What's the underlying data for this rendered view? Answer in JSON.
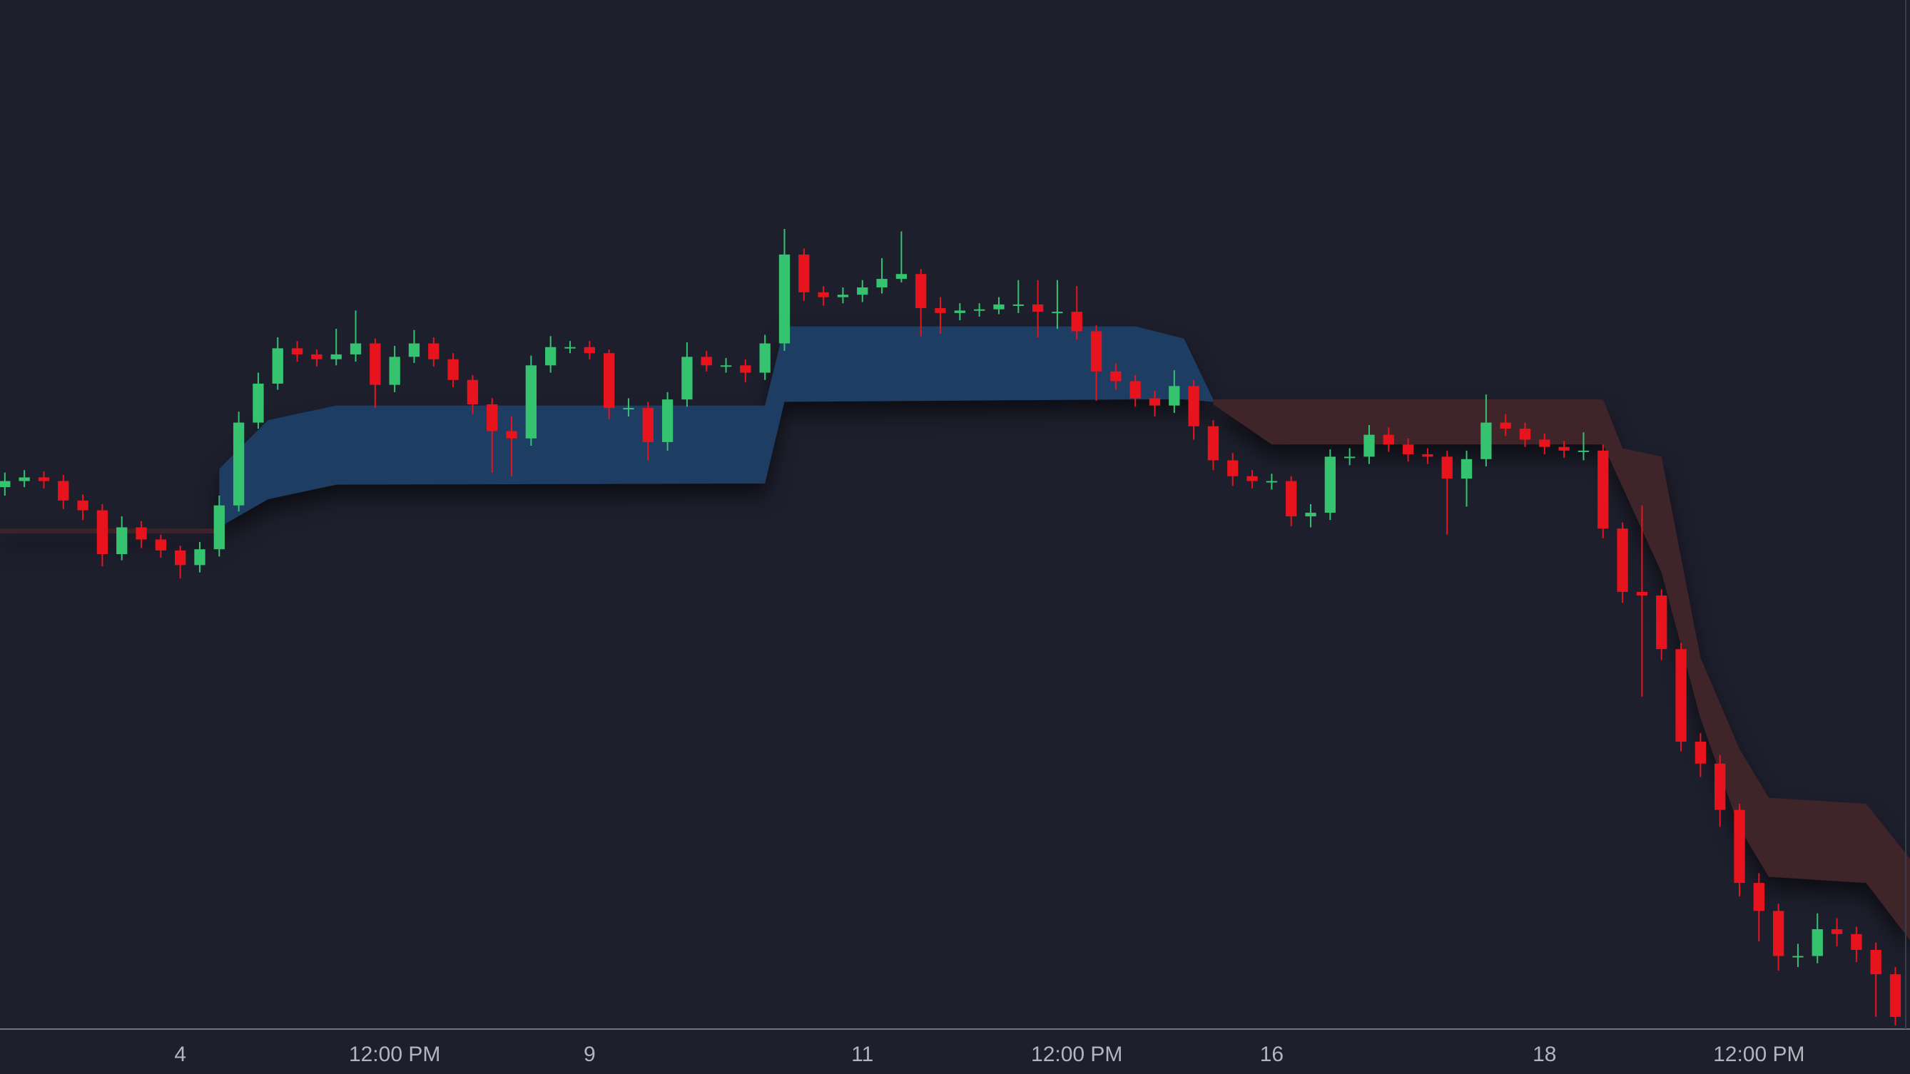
{
  "chart_data": {
    "type": "candlestick",
    "up_color": "#35c370",
    "down_color": "#e8141d",
    "xlim": [
      -0.25,
      97.75
    ],
    "ylim": [
      5.5,
      90
    ],
    "xticks": [
      {
        "value": 9,
        "label": "4"
      },
      {
        "value": 20,
        "label": "12:00 PM"
      },
      {
        "value": 30,
        "label": "9"
      },
      {
        "value": 44,
        "label": "11"
      },
      {
        "value": 55,
        "label": "12:00 PM"
      },
      {
        "value": 65,
        "label": "16"
      },
      {
        "value": 79,
        "label": "18"
      },
      {
        "value": 90,
        "label": "12:00 PM"
      }
    ],
    "open": [
      50.0,
      50.5,
      50.8,
      50.5,
      48.9,
      48.1,
      44.5,
      46.7,
      45.7,
      44.8,
      43.6,
      44.9,
      48.5,
      55.3,
      58.5,
      61.4,
      60.9,
      60.5,
      60.9,
      61.8,
      58.4,
      60.7,
      61.8,
      60.5,
      58.8,
      56.8,
      54.6,
      54.0,
      60.0,
      61.5,
      61.5,
      61.0,
      56.5,
      56.5,
      53.7,
      57.2,
      60.7,
      60.0,
      60.0,
      59.4,
      61.8,
      69.1,
      66.0,
      65.6,
      65.8,
      66.4,
      67.1,
      67.5,
      64.7,
      64.3,
      64.5,
      64.6,
      65.0,
      65.0,
      64.4,
      64.4,
      62.8,
      59.5,
      58.7,
      57.3,
      56.7,
      58.3,
      55.0,
      52.2,
      50.9,
      50.5,
      50.5,
      47.6,
      47.9,
      52.5,
      52.5,
      54.3,
      53.5,
      52.7,
      52.5,
      50.7,
      52.3,
      55.3,
      54.8,
      53.9,
      53.3,
      53.0,
      53.0,
      46.6,
      41.4,
      41.1,
      36.7,
      29.1,
      27.3,
      23.5,
      17.5,
      15.2,
      11.5,
      11.5,
      13.7,
      13.3,
      12.0,
      10.0
    ],
    "high": [
      51.2,
      51.4,
      51.3,
      51.0,
      49.4,
      48.6,
      47.6,
      47.2,
      46.1,
      45.2,
      45.5,
      49.3,
      56.2,
      59.4,
      62.3,
      62.0,
      61.3,
      63.0,
      64.5,
      62.2,
      61.6,
      62.9,
      62.3,
      61.0,
      59.2,
      57.3,
      55.8,
      60.8,
      62.4,
      62.0,
      62.0,
      61.3,
      57.3,
      57.0,
      57.8,
      61.9,
      61.2,
      60.6,
      60.5,
      62.5,
      71.2,
      69.6,
      66.5,
      66.4,
      67.0,
      68.8,
      71.0,
      67.9,
      65.6,
      65.1,
      65.1,
      65.6,
      67.0,
      67.0,
      67.0,
      66.5,
      63.3,
      60.2,
      59.2,
      57.9,
      59.6,
      58.8,
      55.5,
      52.8,
      51.4,
      51.1,
      50.9,
      48.6,
      53.1,
      53.2,
      55.1,
      54.9,
      54.0,
      53.2,
      53.0,
      53.0,
      57.6,
      56.0,
      55.3,
      54.4,
      53.8,
      54.5,
      53.5,
      47.1,
      48.5,
      41.6,
      37.2,
      29.8,
      28.0,
      24.0,
      18.3,
      15.8,
      12.5,
      15.0,
      14.6,
      13.9,
      12.6,
      10.6
    ],
    "low": [
      49.3,
      50.0,
      49.9,
      48.2,
      47.3,
      43.5,
      44.0,
      45.0,
      44.2,
      42.5,
      43.0,
      44.3,
      48.0,
      54.8,
      58.0,
      60.3,
      59.9,
      60.0,
      60.3,
      56.5,
      57.8,
      60.2,
      59.9,
      58.2,
      56.0,
      51.2,
      50.9,
      53.4,
      59.4,
      61.0,
      60.5,
      55.6,
      55.8,
      52.2,
      53.0,
      56.6,
      59.5,
      59.4,
      58.6,
      58.8,
      61.2,
      65.3,
      64.9,
      65.1,
      65.2,
      65.9,
      66.8,
      62.4,
      62.6,
      63.7,
      64.0,
      64.2,
      64.3,
      62.3,
      63.0,
      62.1,
      57.1,
      58.0,
      56.6,
      55.8,
      56.1,
      53.9,
      51.4,
      50.1,
      49.9,
      49.8,
      46.8,
      46.7,
      47.3,
      51.8,
      51.9,
      52.9,
      52.1,
      51.9,
      46.1,
      48.4,
      51.7,
      54.2,
      53.3,
      52.7,
      52.4,
      52.2,
      45.8,
      40.5,
      32.8,
      35.8,
      28.3,
      26.2,
      22.1,
      16.4,
      12.7,
      10.3,
      10.6,
      10.9,
      12.3,
      11.0,
      6.5,
      5.8
    ],
    "close": [
      50.5,
      50.8,
      50.5,
      48.9,
      48.1,
      44.5,
      46.7,
      45.7,
      44.8,
      43.6,
      44.9,
      48.5,
      55.3,
      58.5,
      61.4,
      60.9,
      60.5,
      60.9,
      61.8,
      58.4,
      60.7,
      61.8,
      60.5,
      58.8,
      56.8,
      54.6,
      54.0,
      60.0,
      61.5,
      61.5,
      61.0,
      56.5,
      56.5,
      53.7,
      57.2,
      60.7,
      60.0,
      60.0,
      59.4,
      61.8,
      69.1,
      66.0,
      65.6,
      65.8,
      66.4,
      67.1,
      67.5,
      64.7,
      64.3,
      64.5,
      64.6,
      65.0,
      65.0,
      64.4,
      64.4,
      62.8,
      59.5,
      58.7,
      57.3,
      56.7,
      58.3,
      55.0,
      52.2,
      50.9,
      50.5,
      50.5,
      47.6,
      47.9,
      52.5,
      52.5,
      54.3,
      53.5,
      52.7,
      52.5,
      50.7,
      52.3,
      55.3,
      54.8,
      53.9,
      53.3,
      53.0,
      53.0,
      46.6,
      41.4,
      41.1,
      36.7,
      29.1,
      27.3,
      23.5,
      17.5,
      15.2,
      11.5,
      11.5,
      13.7,
      13.3,
      12.0,
      10.0,
      6.5
    ],
    "bands": [
      {
        "color": "#3d2328",
        "x": [
          -0.25,
          11
        ],
        "upper": [
          46.6,
          46.6
        ],
        "lower": [
          46.2,
          46.2
        ]
      },
      {
        "color": "#1d3d63",
        "x": [
          11,
          13.5,
          17,
          39,
          40,
          58,
          60.5,
          62
        ],
        "upper": [
          51.5,
          55.5,
          56.7,
          56.7,
          63.2,
          63.2,
          62.2,
          57.2
        ],
        "lower": [
          46.7,
          49.0,
          50.2,
          50.3,
          57.0,
          57.2,
          57.2,
          57.0
        ]
      },
      {
        "color": "#3f2429",
        "x": [
          62,
          65,
          82,
          83,
          85,
          87,
          89,
          90.5,
          95.5,
          97.75
        ],
        "upper": [
          57.2,
          57.2,
          57.2,
          53.2,
          52.5,
          36.0,
          28.5,
          24.5,
          24.0,
          19.5
        ],
        "lower": [
          56.8,
          53.5,
          53.5,
          50.0,
          43.0,
          31.0,
          22.0,
          18.0,
          17.5,
          12.8
        ]
      }
    ]
  }
}
